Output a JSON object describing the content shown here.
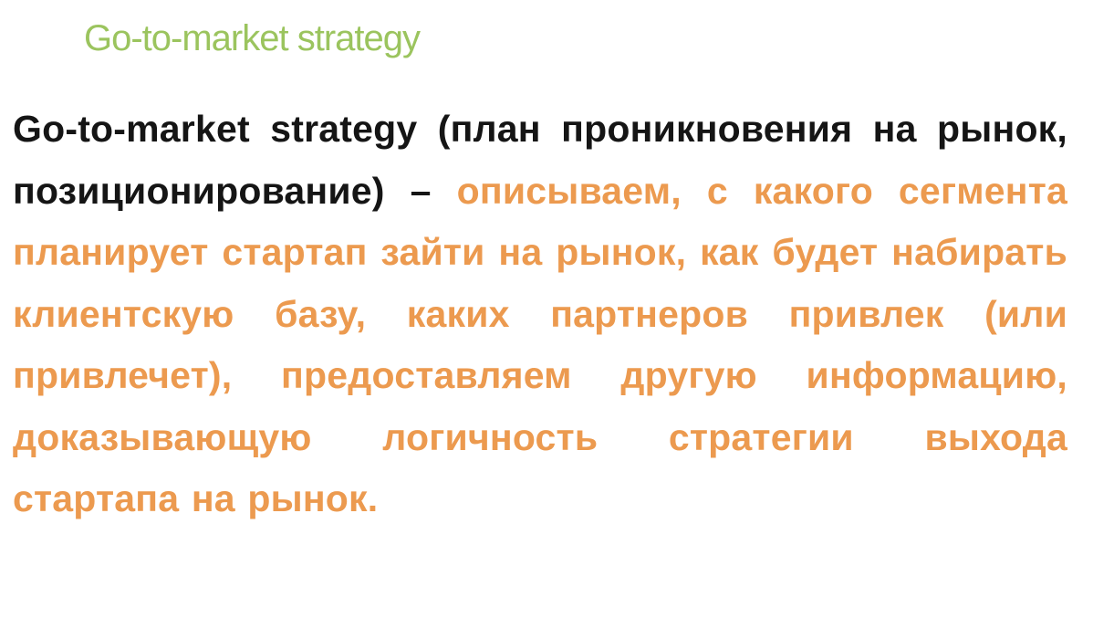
{
  "slide": {
    "title": "Go-to-market strategy",
    "title_color": "#9bc45e",
    "body": {
      "lead": "Go-to-market strategy (план проникновения на рынок, позиционирование) – ",
      "highlight": "описываем, с какого сегмента планирует стартап зайти на рынок, как будет набирать клиентскую базу, каких партнеров привлек (или привлечет), предоставляем другую информацию, доказывающую логичность стратегии выхода стартапа на рынок.",
      "lead_color": "#151515",
      "highlight_color": "#ec9a4f"
    }
  }
}
